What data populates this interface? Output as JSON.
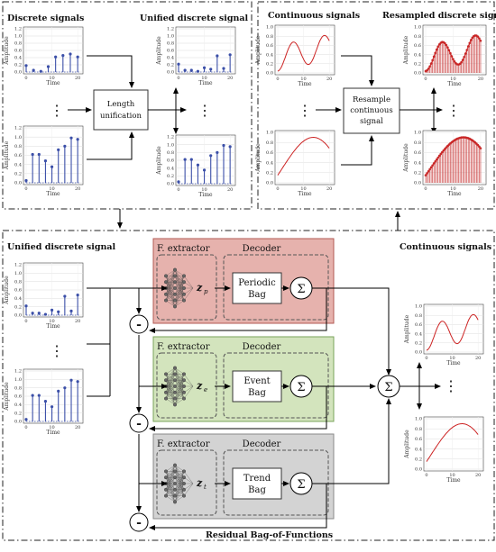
{
  "top_left": {
    "discrete_title": "Discrete signals",
    "unified_title": "Unified discrete signal",
    "length_block": [
      "Length",
      "unification"
    ]
  },
  "top_right": {
    "continuous_title": "Continuous signals",
    "resampled_title": "Resampled discrete signals",
    "resample_block": [
      "Resample",
      "continuous",
      "signal"
    ]
  },
  "bottom": {
    "unified_title": "Unified discrete signal",
    "continuous_title": "Continuous signals",
    "caption": "Residual Bag-of-Functions",
    "extractor_label": "F. extractor",
    "decoder_label": "Decoder",
    "sum_symbol": "Σ",
    "minus_symbol": "-",
    "latent_vars": [
      "z",
      "p",
      "e",
      "t"
    ],
    "bags": [
      {
        "name": [
          "Periodic",
          "Bag"
        ],
        "color": "#e6b2ad",
        "border": "#c05c56"
      },
      {
        "name": [
          "Event",
          "Bag"
        ],
        "color": "#cfe0b8",
        "border": "#7ea85a"
      },
      {
        "name": [
          "Trend",
          "Bag"
        ],
        "color": "#d0d0d0",
        "border": "#888888"
      }
    ]
  },
  "plot": {
    "x_label": "Time",
    "y_label": "Amplitude",
    "x_ticks": [
      "0",
      "10",
      "20"
    ],
    "y_ticks_a": [
      "0.0",
      "0.2",
      "0.4",
      "0.6",
      "0.8",
      "1.0",
      "1.2"
    ],
    "y_ticks_b": [
      "0.0",
      "0.2",
      "0.4",
      "0.6",
      "0.8",
      "1.0"
    ]
  },
  "ellipsis": "⋮",
  "colors": {
    "stem": "#3b4fa8",
    "curve": "#cc2222",
    "resampled": "#c62f2f"
  }
}
